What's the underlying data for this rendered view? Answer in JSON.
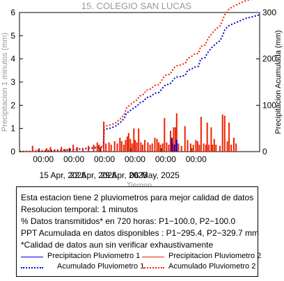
{
  "chart_data": {
    "type": "bar",
    "title": "15. COLEGIO SAN LUCAS",
    "xlabel": "Tiempo",
    "ylabel_left": "Precipitacion 1 minutos (mm)",
    "ylabel_right": "Precipitacion Acumulada (mm)",
    "ylim_left": [
      0,
      6
    ],
    "ylim_right": [
      0,
      300
    ],
    "yticks_left": [
      "0",
      "1",
      "2",
      "3",
      "4",
      "5",
      "6"
    ],
    "yticks_right": [
      "0",
      "100",
      "200",
      "300"
    ],
    "xlim_days": [
      "2025-04-08",
      "2025-05-15"
    ],
    "xtick_time_labels": [
      "00:00",
      "00:00",
      "00:00",
      "00:00",
      "00:00",
      "00:00"
    ],
    "xtick_date_labels": [
      "15 Apr, 2025",
      "22 Apr, 2025",
      "29 Apr, 2025",
      "06 May, 2025"
    ],
    "grid": false,
    "series": [
      {
        "name": "Precipitacion Pluviometro 1",
        "color": "#0000cc",
        "type": "bar",
        "points": [
          [
            34.9,
            0.6
          ],
          [
            35.5,
            0.3
          ],
          [
            36.0,
            0.5
          ]
        ]
      },
      {
        "name": "Precipitacion Pluviometro 2",
        "color": "#ee2200",
        "type": "bar",
        "points": [
          [
            3.0,
            0.25
          ],
          [
            4.3,
            0.1
          ],
          [
            6.2,
            0.15
          ],
          [
            7.1,
            0.2
          ],
          [
            8.0,
            0.1
          ],
          [
            9.6,
            0.2
          ],
          [
            10.5,
            0.1
          ],
          [
            11.4,
            0.15
          ],
          [
            12.3,
            0.3
          ],
          [
            13.2,
            0.2
          ],
          [
            14.5,
            0.15
          ],
          [
            15.8,
            0.25
          ],
          [
            17.0,
            0.3
          ],
          [
            17.8,
            0.4
          ],
          [
            18.2,
            0.3
          ],
          [
            18.6,
            0.2
          ],
          [
            19.3,
            1.3
          ],
          [
            19.8,
            0.35
          ],
          [
            20.5,
            0.4
          ],
          [
            21.0,
            0.3
          ],
          [
            21.8,
            0.45
          ],
          [
            22.4,
            0.35
          ],
          [
            23.0,
            0.6
          ],
          [
            23.4,
            0.45
          ],
          [
            23.9,
            0.3
          ],
          [
            24.3,
            0.5
          ],
          [
            24.7,
            0.65
          ],
          [
            25.0,
            0.8
          ],
          [
            25.4,
            0.55
          ],
          [
            25.8,
            0.35
          ],
          [
            26.2,
            1.0
          ],
          [
            26.5,
            0.5
          ],
          [
            26.9,
            0.4
          ],
          [
            27.3,
            1.0
          ],
          [
            27.8,
            0.4
          ],
          [
            28.2,
            0.3
          ],
          [
            28.7,
            0.5
          ],
          [
            29.4,
            0.4
          ],
          [
            29.9,
            0.3
          ],
          [
            30.4,
            0.35
          ],
          [
            31.0,
            0.6
          ],
          [
            31.5,
            0.55
          ],
          [
            31.9,
            0.4
          ],
          [
            32.3,
            0.3
          ],
          [
            32.8,
            0.35
          ],
          [
            33.2,
            1.45
          ],
          [
            33.7,
            0.4
          ],
          [
            34.2,
            0.3
          ],
          [
            34.6,
            0.9
          ],
          [
            35.0,
            0.35
          ],
          [
            35.3,
            1.05
          ],
          [
            35.7,
            1.05
          ],
          [
            36.0,
            1.65
          ],
          [
            36.4,
            0.35
          ],
          [
            37.1,
            0.25
          ],
          [
            37.9,
            1.1
          ],
          [
            38.5,
            0.5
          ],
          [
            39.2,
            0.35
          ],
          [
            39.8,
            0.3
          ],
          [
            40.4,
            0.5
          ],
          [
            40.8,
            0.45
          ],
          [
            41.2,
            0.3
          ],
          [
            41.6,
            1.5
          ],
          [
            42.2,
            0.35
          ],
          [
            42.7,
            0.3
          ],
          [
            43.0,
            1.25
          ],
          [
            43.4,
            0.3
          ],
          [
            43.9,
            1.05
          ],
          [
            44.2,
            0.3
          ],
          [
            44.6,
            0.55
          ],
          [
            45.0,
            0.3
          ],
          [
            45.9,
            0.25
          ],
          [
            46.5,
            1.6
          ],
          [
            47.0,
            1.55
          ],
          [
            47.6,
            0.45
          ],
          [
            48.0,
            1.25
          ],
          [
            48.5,
            0.3
          ],
          [
            49.1,
            0.6
          ],
          [
            49.6,
            0.35
          ]
        ]
      },
      {
        "name": "Acumulado Pluviometro 1",
        "color": "#0000cc",
        "type": "line",
        "points": [
          [
            0,
            0
          ],
          [
            3,
            1
          ],
          [
            10,
            3
          ],
          [
            15,
            6
          ],
          [
            18,
            9
          ],
          [
            19.2,
            10
          ],
          [
            19.4,
            47
          ],
          [
            20,
            49
          ],
          [
            21,
            51
          ],
          [
            22,
            55
          ],
          [
            23,
            62
          ],
          [
            24,
            72
          ],
          [
            24.5,
            83
          ],
          [
            25,
            86
          ],
          [
            26,
            93
          ],
          [
            27,
            99
          ],
          [
            27.5,
            105
          ],
          [
            28.5,
            109
          ],
          [
            29,
            116
          ],
          [
            30,
            119
          ],
          [
            31,
            126
          ],
          [
            32,
            128
          ],
          [
            33,
            140
          ],
          [
            33.5,
            144
          ],
          [
            34.5,
            146
          ],
          [
            35,
            152
          ],
          [
            35.5,
            158
          ],
          [
            36,
            161
          ],
          [
            37,
            162
          ],
          [
            38,
            165
          ],
          [
            38.5,
            175
          ],
          [
            39.5,
            179
          ],
          [
            40,
            182
          ],
          [
            41,
            184
          ],
          [
            41.5,
            200
          ],
          [
            42.5,
            203
          ],
          [
            43,
            212
          ],
          [
            43.5,
            218
          ],
          [
            44,
            224
          ],
          [
            45,
            233
          ],
          [
            45.5,
            236
          ],
          [
            46,
            240
          ],
          [
            46.5,
            250
          ],
          [
            47,
            262
          ],
          [
            47.5,
            268
          ],
          [
            48,
            272
          ],
          [
            49,
            276
          ],
          [
            50,
            280
          ],
          [
            51,
            284
          ],
          [
            52,
            288
          ],
          [
            53,
            290
          ],
          [
            55,
            295
          ]
        ]
      },
      {
        "name": "Acumulado Pluviometro 2",
        "color": "#ee2200",
        "type": "line",
        "points": [
          [
            0,
            0
          ],
          [
            3,
            1
          ],
          [
            10,
            4
          ],
          [
            15,
            7
          ],
          [
            18,
            10
          ],
          [
            19.2,
            11
          ],
          [
            19.4,
            55
          ],
          [
            20,
            56
          ],
          [
            21,
            58
          ],
          [
            22,
            62
          ],
          [
            23,
            70
          ],
          [
            24,
            80
          ],
          [
            24.5,
            94
          ],
          [
            25,
            98
          ],
          [
            26,
            106
          ],
          [
            27,
            112
          ],
          [
            27.5,
            120
          ],
          [
            28.5,
            124
          ],
          [
            29,
            132
          ],
          [
            30,
            135
          ],
          [
            31,
            143
          ],
          [
            32,
            145
          ],
          [
            33,
            160
          ],
          [
            33.5,
            165
          ],
          [
            34.5,
            167
          ],
          [
            35,
            175
          ],
          [
            35.5,
            182
          ],
          [
            36,
            185
          ],
          [
            37,
            187
          ],
          [
            38,
            191
          ],
          [
            38.5,
            201
          ],
          [
            39.5,
            206
          ],
          [
            40,
            210
          ],
          [
            41,
            212
          ],
          [
            41.5,
            227
          ],
          [
            42.5,
            230
          ],
          [
            43,
            240
          ],
          [
            43.5,
            248
          ],
          [
            44,
            254
          ],
          [
            45,
            265
          ],
          [
            45.5,
            268
          ],
          [
            46,
            272
          ],
          [
            46.5,
            283
          ],
          [
            47,
            295
          ],
          [
            47.5,
            300
          ],
          [
            48,
            308
          ],
          [
            49,
            313
          ],
          [
            50,
            318
          ],
          [
            51,
            322
          ],
          [
            52,
            326
          ],
          [
            53,
            328
          ],
          [
            55,
            329.7
          ]
        ]
      }
    ]
  },
  "info": {
    "line1": "Esta estacion tiene 2 pluviometros para mejor calidad de datos",
    "line2": "Resolucion temporal: 1 minutos",
    "line3": "% Datos transmitidos* en 720 horas: P1−100.0, P2−100.0",
    "line4": "PPT Acumulada en datos disponibles : P1−295.4, P2−329.7 mm",
    "line5": "*Calidad de datos aun sin verificar exhaustivamente"
  },
  "legend": {
    "p1_precip": "Precipitacion Pluviometro 1",
    "p2_precip": "Precipitacion Pluviometro 2",
    "p1_acum": "Acumulado Pluviometro 1",
    "p2_acum": "Acumulado Pluviometro 2"
  }
}
